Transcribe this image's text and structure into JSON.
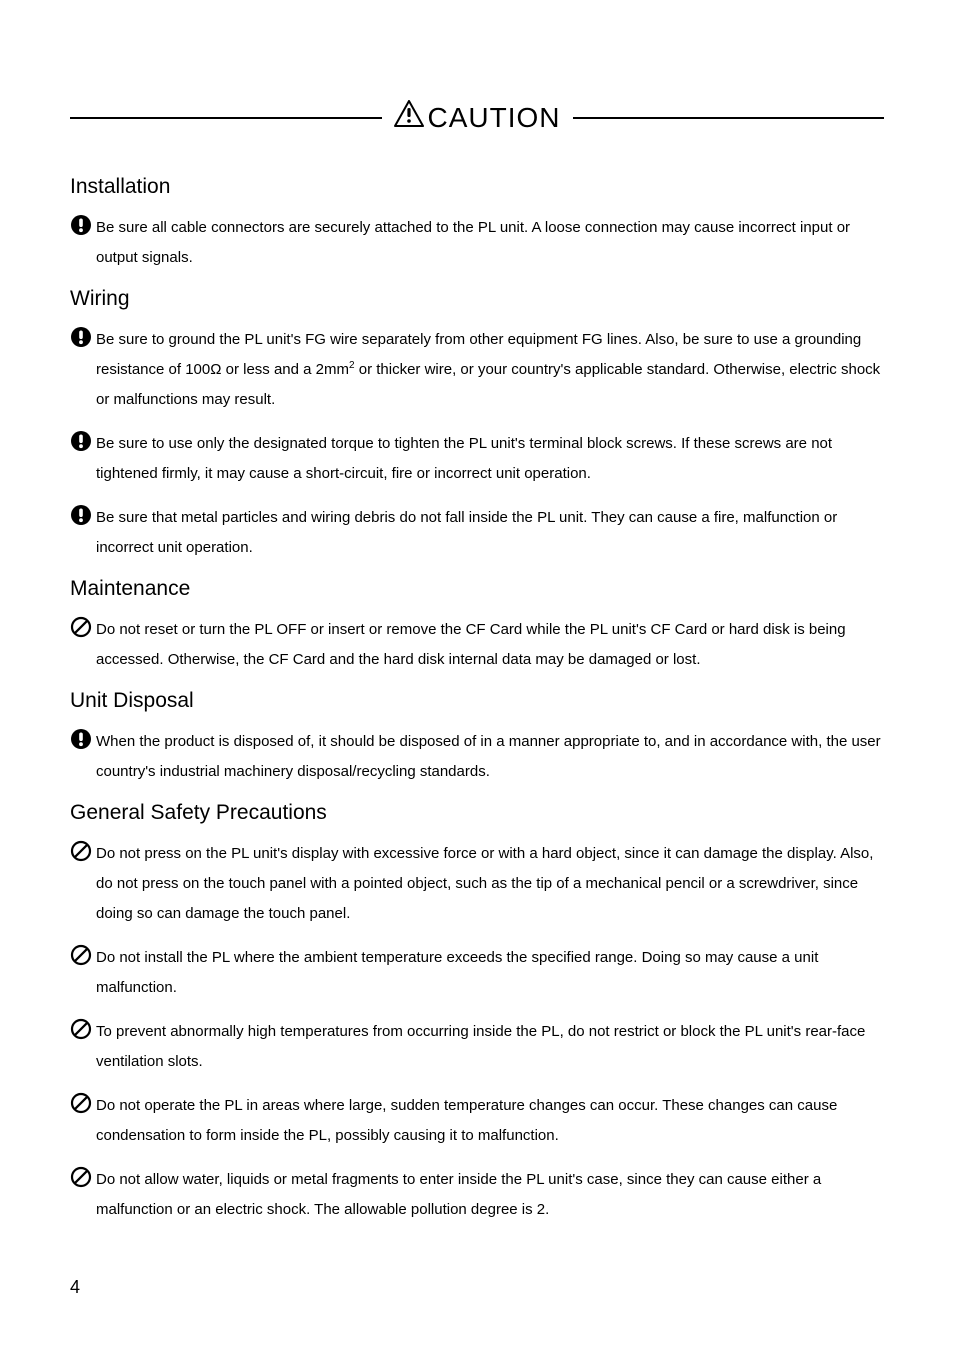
{
  "header": {
    "caution_label": "CAUTION"
  },
  "sections": {
    "installation": {
      "heading": "Installation",
      "items": [
        {
          "icon": "mandatory",
          "text": "Be sure all cable connectors are securely attached to the PL unit. A loose connection may cause incorrect input or output signals."
        }
      ]
    },
    "wiring": {
      "heading": "Wiring",
      "items": [
        {
          "icon": "mandatory",
          "text_html": "Be sure to ground the PL unit's FG wire separately from other equipment FG lines. Also, be sure to use a grounding resistance of 100Ω or less and a 2mm<sup>2</sup> or thicker wire, or your country's applicable standard. Otherwise, electric shock or malfunctions may result."
        },
        {
          "icon": "mandatory",
          "text": "Be sure to use only the designated torque to tighten the PL unit's terminal block screws. If these screws are not tightened firmly, it may cause a short-circuit, fire or incorrect unit operation."
        },
        {
          "icon": "mandatory",
          "text": "Be sure that metal particles and wiring debris do not fall inside the PL unit. They can cause a fire, malfunction or incorrect unit operation."
        }
      ]
    },
    "maintenance": {
      "heading": "Maintenance",
      "items": [
        {
          "icon": "prohibit",
          "text": "Do not reset or turn the PL OFF or insert or remove the CF Card while the PL unit's CF Card or hard disk is being accessed. Otherwise, the CF Card and the hard disk internal data may be damaged or lost."
        }
      ]
    },
    "disposal": {
      "heading": "Unit Disposal",
      "items": [
        {
          "icon": "mandatory",
          "text": "When the product is disposed of, it should be disposed of in a manner appropriate to, and in accordance with, the user country's industrial machinery disposal/recycling standards."
        }
      ]
    },
    "general": {
      "heading": "General Safety Precautions",
      "items": [
        {
          "icon": "prohibit",
          "text": "Do not press on the PL unit's display with excessive force or with a hard object, since it can damage the display. Also, do not press on the touch panel with a pointed object, such as the tip of a mechanical pencil or a screwdriver, since doing so can damage the touch panel."
        },
        {
          "icon": "prohibit",
          "text": "Do not install the PL where the ambient temperature exceeds the specified range. Doing so may cause a unit malfunction."
        },
        {
          "icon": "prohibit",
          "text": "To prevent abnormally high temperatures from occurring inside the PL, do not restrict or block the PL unit's rear-face ventilation slots."
        },
        {
          "icon": "prohibit",
          "text": "Do not operate the PL in areas where large, sudden temperature changes can occur. These changes can cause condensation to form inside the PL, possibly causing it to malfunction."
        },
        {
          "icon": "prohibit",
          "text": "Do not allow water, liquids or metal fragments to enter inside the PL unit's case, since they can cause either a malfunction or an electric shock. The allowable pollution degree is 2."
        }
      ]
    }
  },
  "page_number": "4",
  "icons": {
    "mandatory_svg": "<svg width='22' height='22' viewBox='0 0 22 22'><circle cx='11' cy='11' r='10' fill='#000'/><rect x='9.2' y='4.5' width='3.6' height='8.5' rx='1.8' fill='#fff'/><circle cx='11' cy='16.2' r='1.9' fill='#fff'/></svg>",
    "prohibit_svg": "<svg width='22' height='22' viewBox='0 0 22 22'><circle cx='11' cy='11' r='9' fill='none' stroke='#000' stroke-width='2.2'/><line x1='4.8' y1='17.2' x2='17.2' y2='4.8' stroke='#000' stroke-width='2.2'/></svg>",
    "caution_triangle_svg": "<svg width='30' height='28' viewBox='0 0 30 28'><polygon points='15,1 29,26 1,26' fill='none' stroke='#000' stroke-width='2' stroke-linejoin='round'/><rect x='13.4' y='8' width='3.2' height='9' rx='1.4' fill='#000'/><circle cx='15' cy='21' r='1.8' fill='#000'/></svg>"
  }
}
